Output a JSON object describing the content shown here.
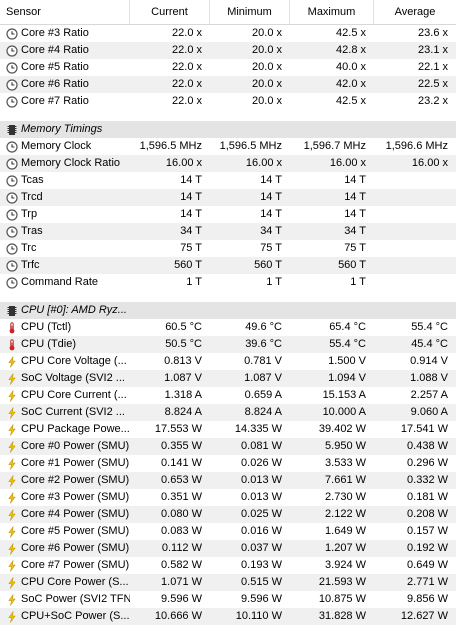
{
  "header": {
    "columns": [
      "Sensor",
      "Current",
      "Minimum",
      "Maximum",
      "Average"
    ]
  },
  "rows": [
    {
      "type": "item",
      "icon": "clock-icon",
      "name": "Core #3 Ratio",
      "current": "22.0 x",
      "min": "20.0 x",
      "max": "42.5 x",
      "avg": "23.6 x"
    },
    {
      "type": "item",
      "icon": "clock-icon",
      "name": "Core #4 Ratio",
      "current": "22.0 x",
      "min": "20.0 x",
      "max": "42.8 x",
      "avg": "23.1 x"
    },
    {
      "type": "item",
      "icon": "clock-icon",
      "name": "Core #5 Ratio",
      "current": "22.0 x",
      "min": "20.0 x",
      "max": "40.0 x",
      "avg": "22.1 x"
    },
    {
      "type": "item",
      "icon": "clock-icon",
      "name": "Core #6 Ratio",
      "current": "22.0 x",
      "min": "20.0 x",
      "max": "42.0 x",
      "avg": "22.5 x"
    },
    {
      "type": "item",
      "icon": "clock-icon",
      "name": "Core #7 Ratio",
      "current": "22.0 x",
      "min": "20.0 x",
      "max": "42.5 x",
      "avg": "23.2 x"
    },
    {
      "type": "gap"
    },
    {
      "type": "group",
      "icon": "memory-chip-icon",
      "name": "Memory Timings"
    },
    {
      "type": "item",
      "icon": "clock-icon",
      "name": "Memory Clock",
      "current": "1,596.5 MHz",
      "min": "1,596.5 MHz",
      "max": "1,596.7 MHz",
      "avg": "1,596.6 MHz"
    },
    {
      "type": "item",
      "icon": "clock-icon",
      "name": "Memory Clock Ratio",
      "current": "16.00 x",
      "min": "16.00 x",
      "max": "16.00 x",
      "avg": "16.00 x"
    },
    {
      "type": "item",
      "icon": "clock-icon",
      "name": "Tcas",
      "current": "14 T",
      "min": "14 T",
      "max": "14 T",
      "avg": ""
    },
    {
      "type": "item",
      "icon": "clock-icon",
      "name": "Trcd",
      "current": "14 T",
      "min": "14 T",
      "max": "14 T",
      "avg": ""
    },
    {
      "type": "item",
      "icon": "clock-icon",
      "name": "Trp",
      "current": "14 T",
      "min": "14 T",
      "max": "14 T",
      "avg": ""
    },
    {
      "type": "item",
      "icon": "clock-icon",
      "name": "Tras",
      "current": "34 T",
      "min": "34 T",
      "max": "34 T",
      "avg": ""
    },
    {
      "type": "item",
      "icon": "clock-icon",
      "name": "Trc",
      "current": "75 T",
      "min": "75 T",
      "max": "75 T",
      "avg": ""
    },
    {
      "type": "item",
      "icon": "clock-icon",
      "name": "Trfc",
      "current": "560 T",
      "min": "560 T",
      "max": "560 T",
      "avg": ""
    },
    {
      "type": "item",
      "icon": "clock-icon",
      "name": "Command Rate",
      "current": "1 T",
      "min": "1 T",
      "max": "1 T",
      "avg": ""
    },
    {
      "type": "gap"
    },
    {
      "type": "group",
      "icon": "cpu-chip-icon",
      "name": "CPU [#0]: AMD Ryz..."
    },
    {
      "type": "item",
      "icon": "thermometer-icon",
      "name": "CPU (Tctl)",
      "current": "60.5 °C",
      "min": "49.6 °C",
      "max": "65.4 °C",
      "avg": "55.4 °C"
    },
    {
      "type": "item",
      "icon": "thermometer-icon",
      "name": "CPU (Tdie)",
      "current": "50.5 °C",
      "min": "39.6 °C",
      "max": "55.4 °C",
      "avg": "45.4 °C"
    },
    {
      "type": "item",
      "icon": "lightning-icon",
      "name": "CPU Core Voltage (...",
      "current": "0.813 V",
      "min": "0.781 V",
      "max": "1.500 V",
      "avg": "0.914 V"
    },
    {
      "type": "item",
      "icon": "lightning-icon",
      "name": "SoC Voltage (SVI2 ...",
      "current": "1.087 V",
      "min": "1.087 V",
      "max": "1.094 V",
      "avg": "1.088 V"
    },
    {
      "type": "item",
      "icon": "lightning-icon",
      "name": "CPU Core Current (...",
      "current": "1.318 A",
      "min": "0.659 A",
      "max": "15.153 A",
      "avg": "2.257 A"
    },
    {
      "type": "item",
      "icon": "lightning-icon",
      "name": "SoC Current (SVI2 ...",
      "current": "8.824 A",
      "min": "8.824 A",
      "max": "10.000 A",
      "avg": "9.060 A"
    },
    {
      "type": "item",
      "icon": "lightning-icon",
      "name": "CPU Package Powe...",
      "current": "17.553 W",
      "min": "14.335 W",
      "max": "39.402 W",
      "avg": "17.541 W"
    },
    {
      "type": "item",
      "icon": "lightning-icon",
      "name": "Core #0 Power (SMU)",
      "current": "0.355 W",
      "min": "0.081 W",
      "max": "5.950 W",
      "avg": "0.438 W"
    },
    {
      "type": "item",
      "icon": "lightning-icon",
      "name": "Core #1 Power (SMU)",
      "current": "0.141 W",
      "min": "0.026 W",
      "max": "3.533 W",
      "avg": "0.296 W"
    },
    {
      "type": "item",
      "icon": "lightning-icon",
      "name": "Core #2 Power (SMU)",
      "current": "0.653 W",
      "min": "0.013 W",
      "max": "7.661 W",
      "avg": "0.332 W"
    },
    {
      "type": "item",
      "icon": "lightning-icon",
      "name": "Core #3 Power (SMU)",
      "current": "0.351 W",
      "min": "0.013 W",
      "max": "2.730 W",
      "avg": "0.181 W"
    },
    {
      "type": "item",
      "icon": "lightning-icon",
      "name": "Core #4 Power (SMU)",
      "current": "0.080 W",
      "min": "0.025 W",
      "max": "2.122 W",
      "avg": "0.208 W"
    },
    {
      "type": "item",
      "icon": "lightning-icon",
      "name": "Core #5 Power (SMU)",
      "current": "0.083 W",
      "min": "0.016 W",
      "max": "1.649 W",
      "avg": "0.157 W"
    },
    {
      "type": "item",
      "icon": "lightning-icon",
      "name": "Core #6 Power (SMU)",
      "current": "0.112 W",
      "min": "0.037 W",
      "max": "1.207 W",
      "avg": "0.192 W"
    },
    {
      "type": "item",
      "icon": "lightning-icon",
      "name": "Core #7 Power (SMU)",
      "current": "0.582 W",
      "min": "0.193 W",
      "max": "3.924 W",
      "avg": "0.649 W"
    },
    {
      "type": "item",
      "icon": "lightning-icon",
      "name": "CPU Core Power (S...",
      "current": "1.071 W",
      "min": "0.515 W",
      "max": "21.593 W",
      "avg": "2.771 W"
    },
    {
      "type": "item",
      "icon": "lightning-icon",
      "name": "SoC Power (SVI2 TFN)",
      "current": "9.596 W",
      "min": "9.596 W",
      "max": "10.875 W",
      "avg": "9.856 W"
    },
    {
      "type": "item",
      "icon": "lightning-icon",
      "name": "CPU+SoC Power (S...",
      "current": "10.666 W",
      "min": "10.110 W",
      "max": "31.828 W",
      "avg": "12.627 W"
    }
  ],
  "colors": {
    "row_alt": "#f0f0f0",
    "group_bg": "#e4e4e4",
    "thermometer": "#d22020",
    "lightning": "#f2c200"
  }
}
